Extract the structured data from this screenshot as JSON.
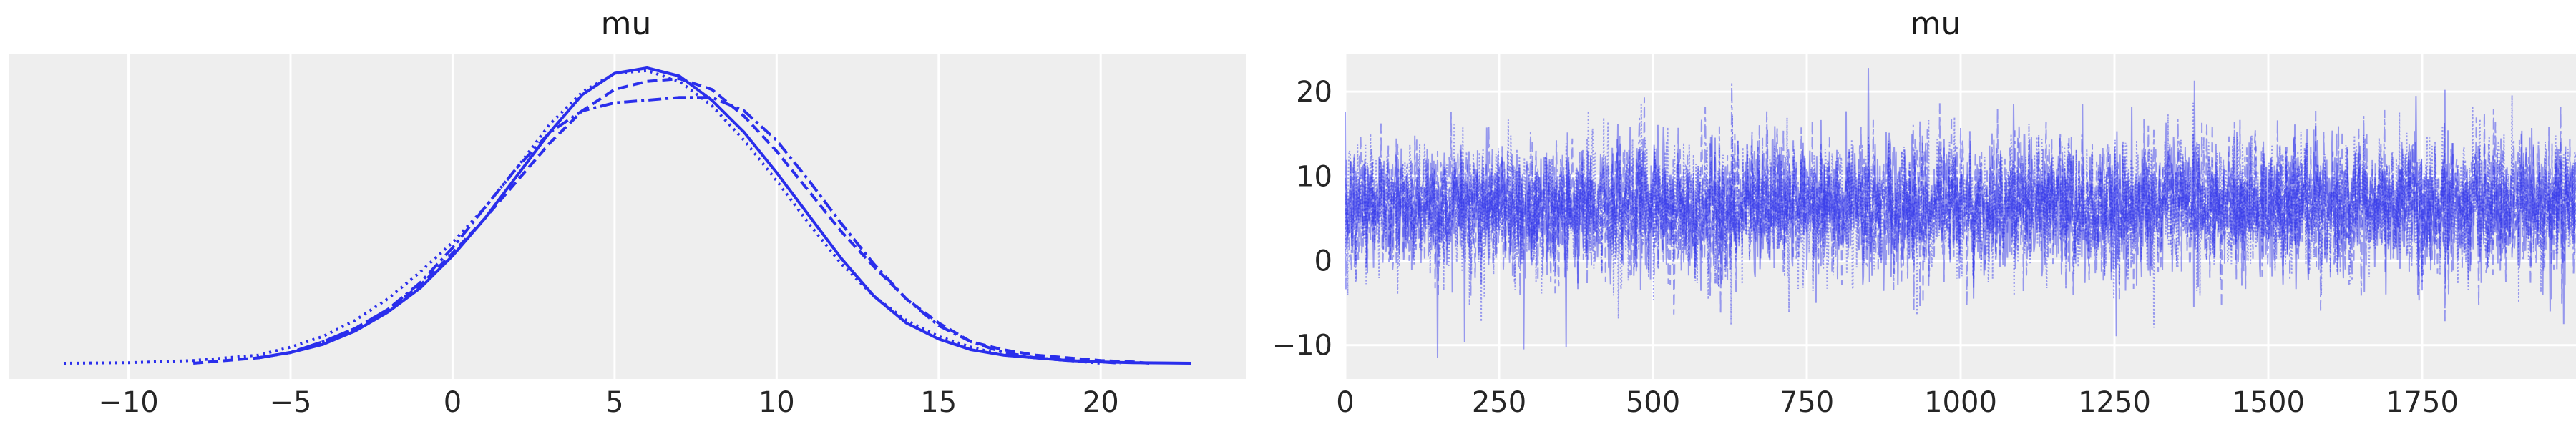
{
  "chart_data": [
    {
      "type": "line",
      "kind": "posterior-density",
      "title": "mu",
      "xlabel": "",
      "ylabel": "",
      "xlim": [
        -13.7,
        24.5
      ],
      "xticks": [
        -10,
        -5,
        0,
        5,
        10,
        15,
        20
      ],
      "yticks": [],
      "grid": true,
      "color": "#2a2eec",
      "background": "#eeeeee",
      "series": [
        {
          "linestyle": "solid",
          "x": [
            -6,
            -5,
            -4,
            -3,
            -2,
            -1,
            0,
            1,
            2,
            3,
            4,
            5,
            6,
            7,
            8,
            9,
            10,
            11,
            12,
            13,
            14,
            15,
            16,
            17,
            18,
            19,
            20,
            21,
            22,
            22.8
          ],
          "y": [
            0.002,
            0.004,
            0.007,
            0.012,
            0.019,
            0.028,
            0.04,
            0.054,
            0.07,
            0.086,
            0.1,
            0.108,
            0.11,
            0.107,
            0.098,
            0.086,
            0.071,
            0.055,
            0.039,
            0.025,
            0.015,
            0.009,
            0.005,
            0.003,
            0.002,
            0.001,
            0.0005,
            0.0002,
            0.0001,
            0.0
          ]
        },
        {
          "linestyle": "dashed",
          "x": [
            -8,
            -6,
            -5,
            -4,
            -3,
            -2,
            -1,
            0,
            1,
            2,
            3,
            4,
            5,
            6,
            7,
            8,
            9,
            10,
            11,
            12,
            13,
            14,
            15,
            16,
            17,
            18,
            19,
            20,
            21,
            21.5
          ],
          "y": [
            0.0,
            0.002,
            0.004,
            0.008,
            0.013,
            0.02,
            0.029,
            0.041,
            0.054,
            0.068,
            0.082,
            0.094,
            0.102,
            0.105,
            0.106,
            0.102,
            0.092,
            0.079,
            0.064,
            0.049,
            0.036,
            0.024,
            0.015,
            0.008,
            0.005,
            0.003,
            0.002,
            0.001,
            0.0005,
            0.0
          ]
        },
        {
          "linestyle": "dashdot",
          "x": [
            -6,
            -5,
            -4,
            -3,
            -2,
            -1,
            0,
            1,
            2,
            3,
            4,
            5,
            6,
            7,
            8,
            9,
            10,
            11,
            12,
            13,
            14,
            15,
            16,
            17,
            18,
            19,
            20,
            20.6
          ],
          "y": [
            0.002,
            0.004,
            0.008,
            0.013,
            0.02,
            0.03,
            0.043,
            0.058,
            0.073,
            0.086,
            0.094,
            0.097,
            0.098,
            0.099,
            0.099,
            0.094,
            0.083,
            0.068,
            0.052,
            0.037,
            0.024,
            0.014,
            0.008,
            0.004,
            0.002,
            0.001,
            0.0005,
            0.0
          ]
        },
        {
          "linestyle": "dotted",
          "x": [
            -12,
            -10,
            -8,
            -6,
            -5,
            -4,
            -3,
            -2,
            -1,
            0,
            1,
            2,
            3,
            4,
            5,
            6,
            7,
            8,
            9,
            10,
            11,
            12,
            13,
            14,
            15,
            16,
            17,
            18,
            19,
            20
          ],
          "y": [
            0.0,
            0.0002,
            0.001,
            0.003,
            0.006,
            0.01,
            0.016,
            0.024,
            0.034,
            0.045,
            0.058,
            0.073,
            0.089,
            0.101,
            0.108,
            0.109,
            0.105,
            0.096,
            0.083,
            0.068,
            0.052,
            0.037,
            0.025,
            0.016,
            0.01,
            0.006,
            0.003,
            0.002,
            0.001,
            0.0
          ]
        }
      ]
    },
    {
      "type": "line",
      "kind": "trace",
      "title": "mu",
      "xlabel": "",
      "ylabel": "",
      "xlim": [
        0,
        2000
      ],
      "ylim": [
        -14,
        24.5
      ],
      "xticks": [
        0,
        250,
        500,
        750,
        1000,
        1250,
        1500,
        1750
      ],
      "yticks": [
        -10,
        0,
        10,
        20
      ],
      "grid": true,
      "color": "#2a2eec",
      "background": "#eeeeee",
      "n_draws_per_chain": 2000,
      "chains": 4,
      "chain_linestyles": [
        "solid",
        "dashed",
        "dashdot",
        "dotted"
      ],
      "series_mean": 6.5,
      "series_sd": 4.0,
      "observed_range": [
        -11.5,
        22.8
      ],
      "notable_draws": [
        {
          "x": 150,
          "y": -11.5
        },
        {
          "x": 290,
          "y": -10.5
        },
        {
          "x": 850,
          "y": 22.8
        },
        {
          "x": 1380,
          "y": 21.3
        },
        {
          "x": 1740,
          "y": 19.5
        },
        {
          "x": 1980,
          "y": -7.5
        }
      ]
    }
  ]
}
